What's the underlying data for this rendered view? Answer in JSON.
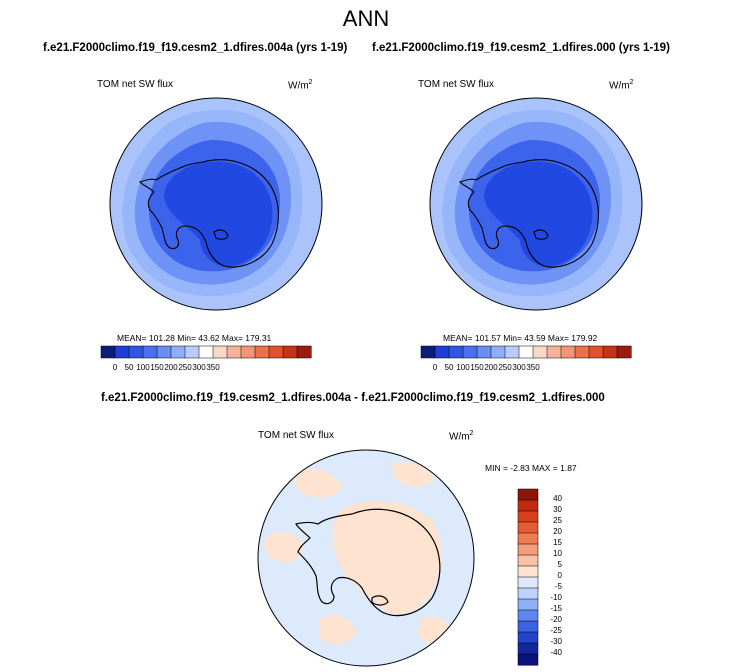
{
  "figure": {
    "title": "ANN"
  },
  "panels": [
    {
      "case": "f.e21.F2000climo.f19_f19.cesm2_1.dfires.004a (yrs 1-19)",
      "variable": "TOM net SW flux",
      "units_base": "W/m",
      "units_exp": "2",
      "stats": "MEAN= 101.28  Min=  43.62  Max= 179.31"
    },
    {
      "case": "f.e21.F2000climo.f19_f19.cesm2_1.dfires.000 (yrs 1-19)",
      "variable": "TOM net SW flux",
      "units_base": "W/m",
      "units_exp": "2",
      "stats": "MEAN= 101.57  Min=  43.59  Max= 179.92"
    },
    {
      "case": "f.e21.F2000climo.f19_f19.cesm2_1.dfires.004a - f.e21.F2000climo.f19_f19.cesm2_1.dfires.000",
      "variable": "TOM net SW flux",
      "units_base": "W/m",
      "units_exp": "2",
      "stats": "MIN = -2.83 MAX =   1.87"
    }
  ],
  "chart_data": [
    {
      "type": "heatmap",
      "projection": "south-polar-stereographic",
      "colorbar": {
        "orientation": "horizontal",
        "tick_labels": [
          "0",
          "50",
          "100",
          "150",
          "200",
          "250",
          "300",
          "350"
        ],
        "colors": [
          "#0a1f7c",
          "#1d3fd6",
          "#2f55e6",
          "#4a6ff0",
          "#6b8ef5",
          "#8fadf8",
          "#b8cdfb",
          "#ffffff",
          "#fbd9c6",
          "#f7b49a",
          "#f49472",
          "#ef7048",
          "#e4502a",
          "#c8321a",
          "#9b1a10"
        ]
      },
      "field_colors": {
        "land_interior": "#2148e0",
        "coast_ring": "#3c63ec",
        "ring_mid": "#6e92f5",
        "ring_outer": "#97b6f9",
        "outer": "#aac4fb"
      }
    },
    {
      "type": "heatmap",
      "projection": "south-polar-stereographic",
      "colorbar": {
        "orientation": "horizontal",
        "tick_labels": [
          "0",
          "50",
          "100",
          "150",
          "200",
          "250",
          "300",
          "350"
        ],
        "colors": [
          "#0a1f7c",
          "#1d3fd6",
          "#2f55e6",
          "#4a6ff0",
          "#6b8ef5",
          "#8fadf8",
          "#b8cdfb",
          "#ffffff",
          "#fbd9c6",
          "#f7b49a",
          "#f49472",
          "#ef7048",
          "#e4502a",
          "#c8321a",
          "#9b1a10"
        ]
      },
      "field_colors": {
        "land_interior": "#2148e0",
        "coast_ring": "#3c63ec",
        "ring_mid": "#6e92f5",
        "ring_outer": "#97b6f9",
        "outer": "#aac4fb"
      }
    },
    {
      "type": "heatmap",
      "projection": "south-polar-stereographic",
      "colorbar": {
        "orientation": "vertical",
        "tick_labels": [
          "40",
          "30",
          "25",
          "20",
          "15",
          "10",
          "5",
          "0",
          "-5",
          "-10",
          "-15",
          "-20",
          "-25",
          "-30",
          "-40"
        ],
        "colors": [
          "#8e1408",
          "#c02a12",
          "#d8401c",
          "#e65c30",
          "#ef7c52",
          "#f49d7a",
          "#f8c0a4",
          "#fde3d2",
          "#dce9fb",
          "#bdd1fa",
          "#8eb0f6",
          "#5f86ee",
          "#3a62e4",
          "#2343c9",
          "#14279a",
          "#0a137a"
        ]
      },
      "field_colors": {
        "base": "#dceafb",
        "patch": "#fde3d0"
      }
    }
  ]
}
